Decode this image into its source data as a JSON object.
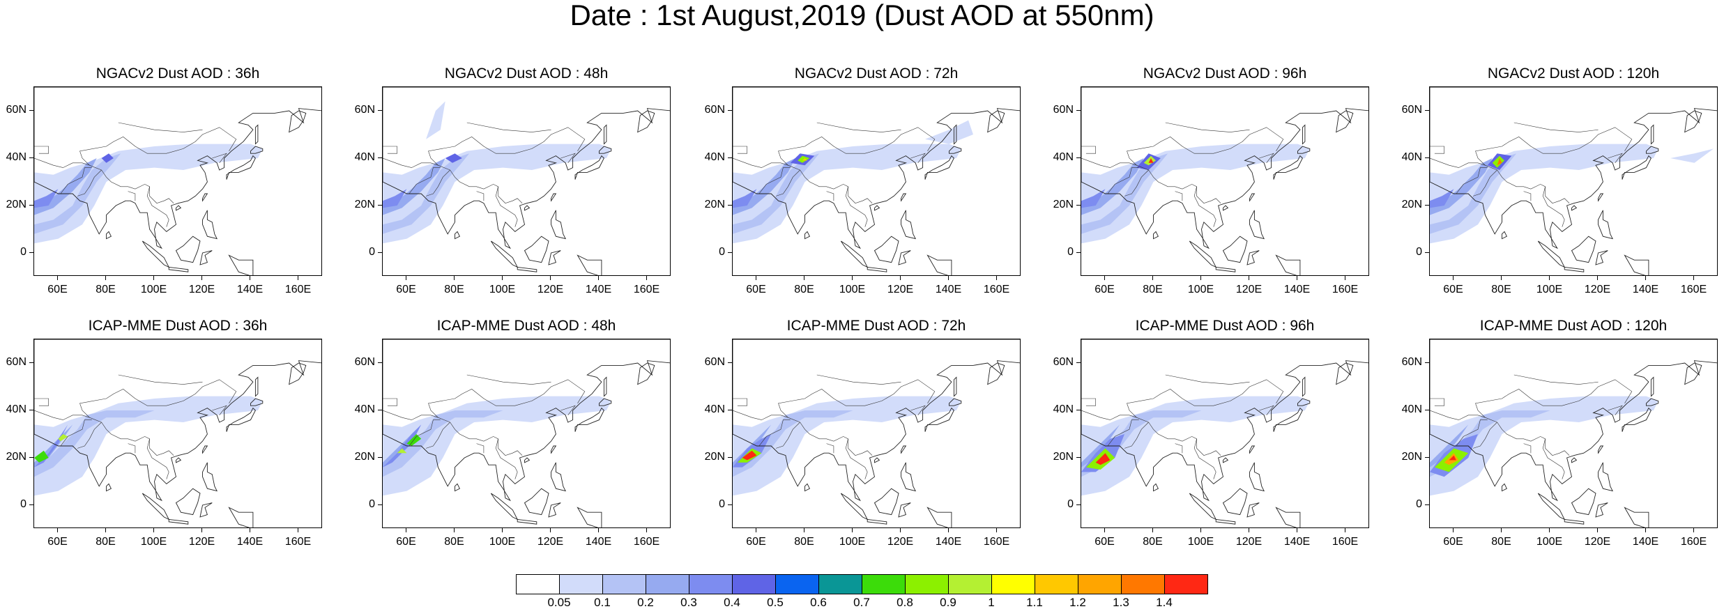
{
  "title": "Date : 1st August,2019 (Dust AOD at 550nm)",
  "lat_labels": [
    "60N",
    "40N",
    "20N",
    "0"
  ],
  "lon_labels": [
    "60E",
    "80E",
    "100E",
    "120E",
    "140E",
    "160E"
  ],
  "panels": [
    {
      "title": "NGACv2 Dust AOD : 36h",
      "model": "NGACv2",
      "lead_time": "36h"
    },
    {
      "title": "NGACv2 Dust AOD : 48h",
      "model": "NGACv2",
      "lead_time": "48h"
    },
    {
      "title": "NGACv2 Dust AOD : 72h",
      "model": "NGACv2",
      "lead_time": "72h"
    },
    {
      "title": "NGACv2 Dust AOD : 96h",
      "model": "NGACv2",
      "lead_time": "96h"
    },
    {
      "title": "NGACv2 Dust AOD : 120h",
      "model": "NGACv2",
      "lead_time": "120h"
    },
    {
      "title": "ICAP-MME Dust AOD : 36h",
      "model": "ICAP-MME",
      "lead_time": "36h"
    },
    {
      "title": "ICAP-MME Dust AOD : 48h",
      "model": "ICAP-MME",
      "lead_time": "48h"
    },
    {
      "title": "ICAP-MME Dust AOD : 72h",
      "model": "ICAP-MME",
      "lead_time": "72h"
    },
    {
      "title": "ICAP-MME Dust AOD : 96h",
      "model": "ICAP-MME",
      "lead_time": "96h"
    },
    {
      "title": "ICAP-MME Dust AOD : 120h",
      "model": "ICAP-MME",
      "lead_time": "120h"
    }
  ],
  "colorbar": {
    "colors": [
      "#ffffff",
      "#d2dcfa",
      "#b4c3f5",
      "#96aaf0",
      "#7d8cf0",
      "#5f64e6",
      "#0a64f0",
      "#0a9696",
      "#3cdc0a",
      "#8cf000",
      "#b4f032",
      "#ffff00",
      "#ffc800",
      "#ffa500",
      "#ff7800",
      "#ff2814"
    ],
    "labels": [
      "0.05",
      "0.1",
      "0.2",
      "0.3",
      "0.4",
      "0.5",
      "0.6",
      "0.7",
      "0.8",
      "0.9",
      "1",
      "1.1",
      "1.2",
      "1.3",
      "1.4"
    ]
  }
}
